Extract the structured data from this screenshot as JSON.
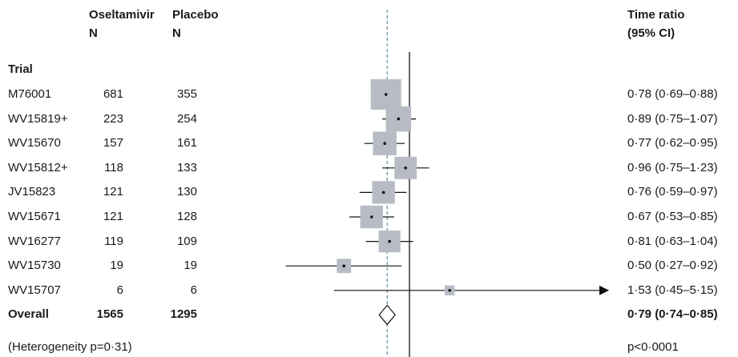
{
  "header": {
    "col_oseltamivir": "Oseltamivir",
    "col_placebo": "Placebo",
    "col_n": "N",
    "col_placebo_n": "N",
    "col_ratio": "Time ratio",
    "col_ci": "(95% CI)"
  },
  "section_label": "Trial",
  "footer": {
    "heterogeneity": "(Heterogeneity p=0·31)",
    "p_value": "p<0·0001"
  },
  "chart_data": {
    "type": "forest",
    "reference_line": 1.0,
    "pooled_line": 0.79,
    "trials": [
      {
        "name": "M76001",
        "n_oseltamivir": "681",
        "n_placebo": "355",
        "estimate": 0.78,
        "lower": 0.69,
        "upper": 0.88,
        "weight": 1.0,
        "label": "0·78 (0·69–0·88)"
      },
      {
        "name": "WV15819+",
        "n_oseltamivir": "223",
        "n_placebo": "254",
        "estimate": 0.89,
        "lower": 0.75,
        "upper": 1.07,
        "weight": 0.65,
        "label": "0·89 (0·75–1·07)"
      },
      {
        "name": "WV15670",
        "n_oseltamivir": "157",
        "n_placebo": "161",
        "estimate": 0.77,
        "lower": 0.62,
        "upper": 0.95,
        "weight": 0.55,
        "label": "0·77 (0·62–0·95)"
      },
      {
        "name": "WV15812+",
        "n_oseltamivir": "118",
        "n_placebo": "133",
        "estimate": 0.96,
        "lower": 0.75,
        "upper": 1.23,
        "weight": 0.48,
        "label": "0·96 (0·75–1·23)"
      },
      {
        "name": "JV15823",
        "n_oseltamivir": "121",
        "n_placebo": "130",
        "estimate": 0.76,
        "lower": 0.59,
        "upper": 0.97,
        "weight": 0.5,
        "label": "0·76 (0·59–0·97)"
      },
      {
        "name": "WV15671",
        "n_oseltamivir": "121",
        "n_placebo": "128",
        "estimate": 0.67,
        "lower": 0.53,
        "upper": 0.85,
        "weight": 0.5,
        "label": "0·67 (0·53–0·85)"
      },
      {
        "name": "WV16277",
        "n_oseltamivir": "119",
        "n_placebo": "109",
        "estimate": 0.81,
        "lower": 0.63,
        "upper": 1.04,
        "weight": 0.45,
        "label": "0·81 (0·63–1·04)"
      },
      {
        "name": "WV15730",
        "n_oseltamivir": "19",
        "n_placebo": "19",
        "estimate": 0.5,
        "lower": 0.27,
        "upper": 0.92,
        "weight": 0.15,
        "label": "0·50 (0·27–0·92)"
      },
      {
        "name": "WV15707",
        "n_oseltamivir": "6",
        "n_placebo": "6",
        "estimate": 1.53,
        "lower": 0.45,
        "upper": 5.15,
        "weight": 0.05,
        "label": "1·53 (0·45–5·15)",
        "arrow_right": true
      }
    ],
    "overall": {
      "name": "Overall",
      "n_oseltamivir": "1565",
      "n_placebo": "1295",
      "estimate": 0.79,
      "lower": 0.74,
      "upper": 0.85,
      "label": "0·79 (0·74–0·85)"
    },
    "colors": {
      "box": "#b7bcc4",
      "line": "#111111",
      "pooled_dash": "#4f7f95"
    }
  }
}
